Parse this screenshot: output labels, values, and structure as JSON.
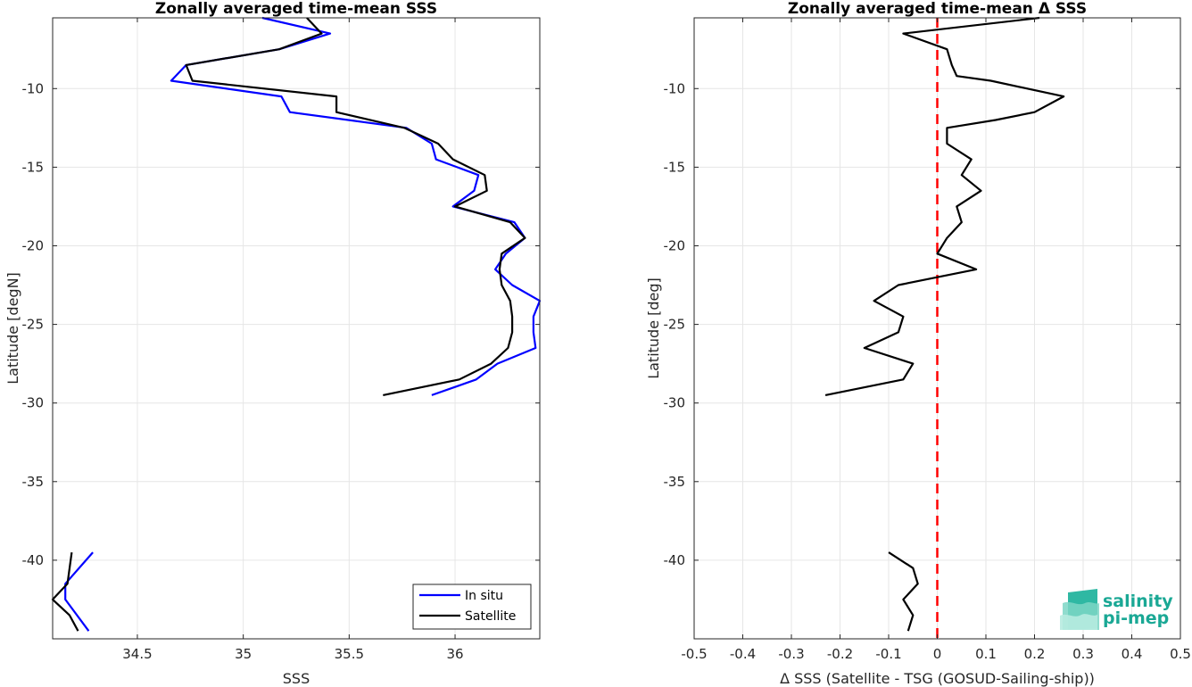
{
  "chart_data": [
    {
      "type": "line",
      "title": "Zonally averaged time-mean SSS",
      "xlabel": "SSS",
      "ylabel": "Latitude [degN]",
      "xlim": [
        34.1,
        36.4
      ],
      "ylim": [
        -45,
        -5.5
      ],
      "xticks": [
        34.5,
        35,
        35.5,
        36
      ],
      "xtick_labels": [
        "34.5",
        "35",
        "35.5",
        "36"
      ],
      "yticks": [
        -10,
        -15,
        -20,
        -25,
        -30,
        -35,
        -40
      ],
      "ytick_labels": [
        "-10",
        "-15",
        "-20",
        "-25",
        "-30",
        "-35",
        "-40"
      ],
      "grid": true,
      "legend": "bottom-right",
      "series": [
        {
          "name": "In situ",
          "color": "#0000ff",
          "segments": [
            [
              [
                35.09,
                -5.5
              ],
              [
                35.41,
                -6.5
              ],
              [
                35.17,
                -7.5
              ],
              [
                34.73,
                -8.5
              ],
              [
                34.66,
                -9.5
              ],
              [
                35.18,
                -10.5
              ],
              [
                35.22,
                -11.5
              ],
              [
                35.77,
                -12.5
              ],
              [
                35.89,
                -13.5
              ],
              [
                35.91,
                -14.5
              ],
              [
                36.11,
                -15.5
              ],
              [
                36.09,
                -16.5
              ],
              [
                35.99,
                -17.5
              ],
              [
                36.28,
                -18.5
              ],
              [
                36.33,
                -19.5
              ],
              [
                36.24,
                -20.5
              ],
              [
                36.19,
                -21.5
              ],
              [
                36.27,
                -22.5
              ],
              [
                36.4,
                -23.5
              ],
              [
                36.37,
                -24.5
              ],
              [
                36.37,
                -25.5
              ],
              [
                36.38,
                -26.5
              ],
              [
                36.2,
                -27.5
              ],
              [
                36.1,
                -28.5
              ],
              [
                35.89,
                -29.5
              ]
            ],
            [
              [
                34.29,
                -39.5
              ],
              [
                34.16,
                -41.5
              ],
              [
                34.16,
                -42.5
              ],
              [
                34.27,
                -44.5
              ]
            ]
          ]
        },
        {
          "name": "Satellite",
          "color": "#000000",
          "segments": [
            [
              [
                35.3,
                -5.5
              ],
              [
                35.37,
                -6.5
              ],
              [
                35.17,
                -7.5
              ],
              [
                34.73,
                -8.5
              ],
              [
                34.76,
                -9.5
              ],
              [
                35.44,
                -10.5
              ],
              [
                35.44,
                -11.5
              ],
              [
                35.76,
                -12.5
              ],
              [
                35.92,
                -13.5
              ],
              [
                35.99,
                -14.5
              ],
              [
                36.14,
                -15.5
              ],
              [
                36.15,
                -16.5
              ],
              [
                36.0,
                -17.5
              ],
              [
                36.26,
                -18.5
              ],
              [
                36.33,
                -19.5
              ],
              [
                36.22,
                -20.5
              ],
              [
                36.21,
                -21.5
              ],
              [
                36.22,
                -22.5
              ],
              [
                36.26,
                -23.5
              ],
              [
                36.27,
                -24.5
              ],
              [
                36.27,
                -25.5
              ],
              [
                36.25,
                -26.5
              ],
              [
                36.17,
                -27.5
              ],
              [
                36.02,
                -28.5
              ],
              [
                35.66,
                -29.5
              ]
            ],
            [
              [
                34.19,
                -39.5
              ],
              [
                34.17,
                -41.5
              ],
              [
                34.1,
                -42.5
              ],
              [
                34.18,
                -43.5
              ],
              [
                34.22,
                -44.5
              ]
            ]
          ]
        }
      ]
    },
    {
      "type": "line",
      "title": "Zonally averaged time-mean Δ SSS",
      "xlabel": "Δ SSS (Satellite - TSG (GOSUD-Sailing-ship))",
      "ylabel": "Latitude [deg]",
      "xlim": [
        -0.5,
        0.5
      ],
      "ylim": [
        -45,
        -5.5
      ],
      "xticks": [
        -0.5,
        -0.4,
        -0.3,
        -0.2,
        -0.1,
        0,
        0.1,
        0.2,
        0.3,
        0.4,
        0.5
      ],
      "xtick_labels": [
        "-0.5",
        "-0.4",
        "-0.3",
        "-0.2",
        "-0.1",
        "0",
        "0.1",
        "0.2",
        "0.3",
        "0.4",
        "0.5"
      ],
      "yticks": [
        -10,
        -15,
        -20,
        -25,
        -30,
        -35,
        -40
      ],
      "ytick_labels": [
        "-10",
        "-15",
        "-20",
        "-25",
        "-30",
        "-35",
        "-40"
      ],
      "grid": true,
      "reference_line": {
        "x": 0,
        "color": "#ff0000",
        "style": "dashed"
      },
      "series": [
        {
          "color": "#000000",
          "segments": [
            [
              [
                0.21,
                -5.5
              ],
              [
                -0.07,
                -6.5
              ],
              [
                0.02,
                -7.5
              ],
              [
                0.03,
                -8.5
              ],
              [
                0.04,
                -9.2
              ],
              [
                0.11,
                -9.5
              ],
              [
                0.26,
                -10.5
              ],
              [
                0.2,
                -11.5
              ],
              [
                0.12,
                -12.0
              ],
              [
                0.04,
                -12.4
              ],
              [
                0.02,
                -12.5
              ],
              [
                0.02,
                -13.5
              ],
              [
                0.07,
                -14.5
              ],
              [
                0.05,
                -15.5
              ],
              [
                0.09,
                -16.5
              ],
              [
                0.04,
                -17.5
              ],
              [
                0.05,
                -18.5
              ],
              [
                0.02,
                -19.5
              ],
              [
                0.0,
                -20.5
              ],
              [
                0.08,
                -21.5
              ],
              [
                0.0,
                -22.0
              ],
              [
                -0.08,
                -22.5
              ],
              [
                -0.13,
                -23.5
              ],
              [
                -0.07,
                -24.5
              ],
              [
                -0.08,
                -25.5
              ],
              [
                -0.15,
                -26.5
              ],
              [
                -0.05,
                -27.5
              ],
              [
                -0.07,
                -28.5
              ],
              [
                -0.23,
                -29.5
              ]
            ],
            [
              [
                -0.1,
                -39.5
              ],
              [
                -0.05,
                -40.5
              ],
              [
                -0.04,
                -41.5
              ],
              [
                -0.07,
                -42.5
              ],
              [
                -0.05,
                -43.5
              ],
              [
                -0.06,
                -44.5
              ]
            ]
          ]
        }
      ]
    }
  ],
  "legend": {
    "items": [
      "In situ",
      "Satellite"
    ]
  },
  "logo": {
    "line1": "salinity",
    "line2": "pi-mep",
    "color": "#1aa895"
  }
}
